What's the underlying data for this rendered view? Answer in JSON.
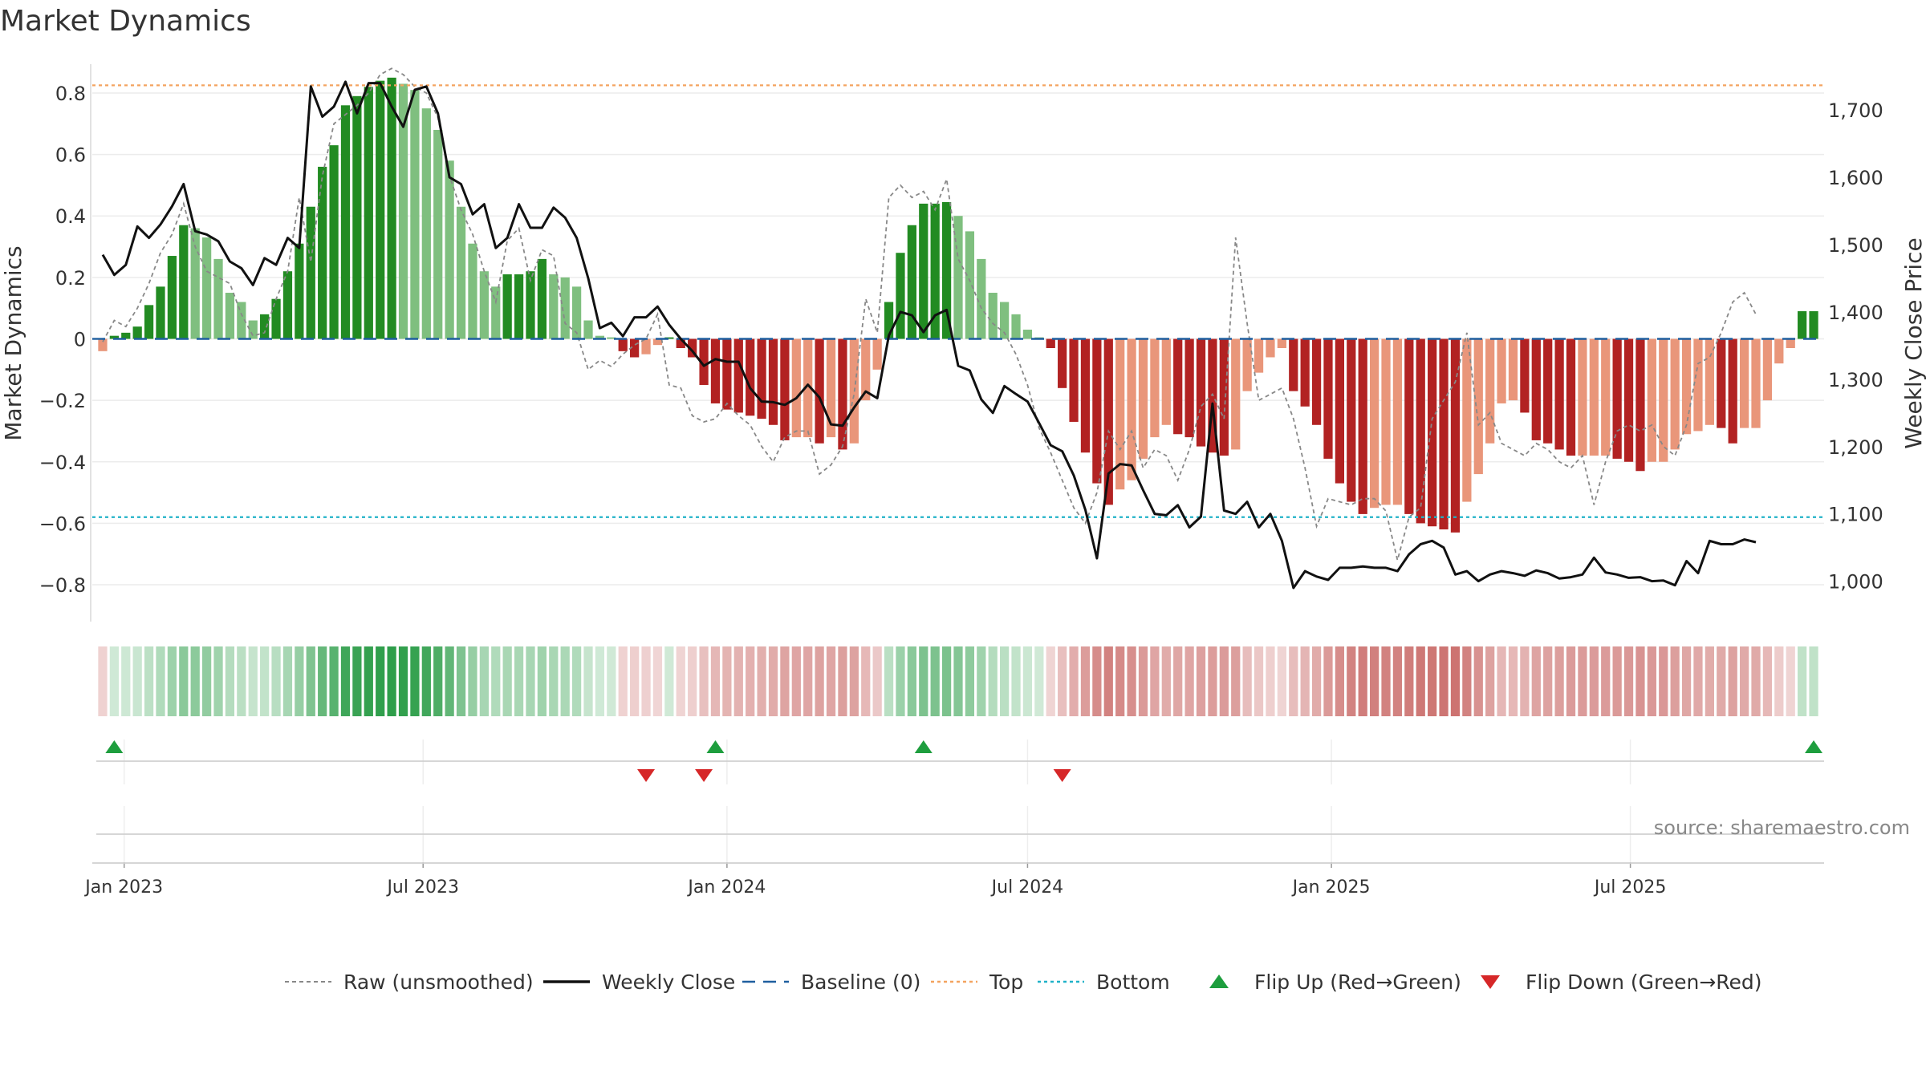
{
  "chart_data": {
    "type": "bar",
    "title": "Market Dynamics",
    "ylabel": "Market Dynamics",
    "y2label": "Weekly Close Price",
    "ylim": [
      -0.92,
      0.92
    ],
    "y2lim": [
      940,
      1780
    ],
    "yticks": [
      "0.8",
      "0.6",
      "0.4",
      "0.2",
      "0",
      "−0.2",
      "−0.4",
      "−0.6",
      "−0.8"
    ],
    "yticks_values": [
      0.8,
      0.6,
      0.4,
      0.2,
      0,
      -0.2,
      -0.4,
      -0.6,
      -0.8
    ],
    "y2ticks": [
      "1,700",
      "1,600",
      "1,500",
      "1,400",
      "1,300",
      "1,200",
      "1,100",
      "1,000"
    ],
    "y2ticks_values": [
      1700,
      1600,
      1500,
      1400,
      1300,
      1200,
      1100,
      1000
    ],
    "xticks": [
      "Jan 2023",
      "Jul 2023",
      "Jan 2024",
      "Jul 2024",
      "Jan 2025",
      "Jul 2025"
    ],
    "xticks_dates": [
      "2023-01-01",
      "2023-07-01",
      "2024-01-01",
      "2024-07-01",
      "2025-01-01",
      "2025-07-01"
    ],
    "start_date": "2022-12-19",
    "top_level": 0.825,
    "bottom_level": -0.58,
    "grid": true,
    "legend_position": "bottom",
    "source": "source: sharemaestro.com",
    "legend": [
      "Raw (unsmoothed)",
      "Weekly Close",
      "Baseline (0)",
      "Top",
      "Bottom",
      "Flip Up (Red→Green)",
      "Flip Down (Green→Red)"
    ],
    "colors": {
      "strong_up": "#228b22",
      "weak_up": "#7fbf7f",
      "strong_down": "#b22222",
      "weak_down": "#e9967a",
      "close": "#111111",
      "raw": "#888888",
      "baseline": "#1f5f9f",
      "top": "#f4a460",
      "bottom": "#20b2c8",
      "flip_up": "#1e9e3e",
      "flip_down": "#d62728"
    },
    "series": [
      {
        "name": "Market Dynamics",
        "values": [
          -0.04,
          0.01,
          0.02,
          0.04,
          0.11,
          0.17,
          0.27,
          0.37,
          0.36,
          0.33,
          0.26,
          0.15,
          0.12,
          0.06,
          0.08,
          0.13,
          0.22,
          0.31,
          0.43,
          0.56,
          0.63,
          0.76,
          0.79,
          0.82,
          0.84,
          0.85,
          0.83,
          0.81,
          0.75,
          0.68,
          0.58,
          0.43,
          0.31,
          0.22,
          0.17,
          0.21,
          0.21,
          0.22,
          0.26,
          0.21,
          0.2,
          0.17,
          0.06,
          0.01,
          0.005,
          -0.04,
          -0.06,
          -0.05,
          -0.02,
          0.005,
          -0.03,
          -0.06,
          -0.15,
          -0.21,
          -0.23,
          -0.24,
          -0.25,
          -0.26,
          -0.28,
          -0.33,
          -0.32,
          -0.32,
          -0.34,
          -0.32,
          -0.36,
          -0.34,
          -0.2,
          -0.1,
          0.12,
          0.28,
          0.37,
          0.44,
          0.44,
          0.445,
          0.4,
          0.35,
          0.26,
          0.15,
          0.12,
          0.08,
          0.03,
          0.005,
          -0.03,
          -0.16,
          -0.27,
          -0.37,
          -0.47,
          -0.54,
          -0.49,
          -0.46,
          -0.39,
          -0.32,
          -0.28,
          -0.31,
          -0.32,
          -0.35,
          -0.37,
          -0.38,
          -0.36,
          -0.17,
          -0.11,
          -0.06,
          -0.03,
          -0.17,
          -0.22,
          -0.28,
          -0.39,
          -0.47,
          -0.53,
          -0.57,
          -0.55,
          -0.54,
          -0.54,
          -0.57,
          -0.6,
          -0.61,
          -0.62,
          -0.63,
          -0.53,
          -0.44,
          -0.34,
          -0.21,
          -0.2,
          -0.24,
          -0.33,
          -0.34,
          -0.36,
          -0.38,
          -0.38,
          -0.38,
          -0.38,
          -0.39,
          -0.4,
          -0.43,
          -0.4,
          -0.4,
          -0.36,
          -0.31,
          -0.3,
          -0.28,
          -0.29,
          -0.34,
          -0.29,
          -0.29,
          -0.2,
          -0.08,
          -0.03,
          0.09,
          0.09
        ]
      },
      {
        "name": "Raw (unsmoothed)",
        "values": [
          -0.01,
          0.06,
          0.04,
          0.1,
          0.18,
          0.28,
          0.34,
          0.44,
          0.3,
          0.22,
          0.2,
          0.18,
          0.08,
          0.01,
          0.02,
          0.13,
          0.22,
          0.46,
          0.25,
          0.53,
          0.7,
          0.73,
          0.76,
          0.8,
          0.86,
          0.88,
          0.86,
          0.82,
          0.8,
          0.72,
          0.53,
          0.42,
          0.34,
          0.22,
          0.12,
          0.32,
          0.36,
          0.19,
          0.29,
          0.27,
          0.05,
          0.02,
          -0.1,
          -0.07,
          -0.09,
          -0.05,
          -0.02,
          0.0,
          0.08,
          -0.15,
          -0.16,
          -0.25,
          -0.27,
          -0.26,
          -0.21,
          -0.25,
          -0.28,
          -0.35,
          -0.4,
          -0.32,
          -0.3,
          -0.3,
          -0.44,
          -0.41,
          -0.35,
          -0.18,
          0.13,
          0.02,
          0.46,
          0.5,
          0.46,
          0.48,
          0.42,
          0.52,
          0.26,
          0.19,
          0.1,
          0.05,
          0.02,
          -0.05,
          -0.15,
          -0.29,
          -0.37,
          -0.46,
          -0.55,
          -0.6,
          -0.5,
          -0.3,
          -0.36,
          -0.3,
          -0.42,
          -0.36,
          -0.38,
          -0.46,
          -0.36,
          -0.22,
          -0.18,
          -0.26,
          0.33,
          0.05,
          -0.2,
          -0.18,
          -0.16,
          -0.26,
          -0.42,
          -0.61,
          -0.52,
          -0.53,
          -0.54,
          -0.52,
          -0.52,
          -0.56,
          -0.72,
          -0.58,
          -0.55,
          -0.26,
          -0.2,
          -0.14,
          0.02,
          -0.28,
          -0.24,
          -0.34,
          -0.36,
          -0.38,
          -0.34,
          -0.36,
          -0.4,
          -0.42,
          -0.38,
          -0.54,
          -0.4,
          -0.3,
          -0.28,
          -0.3,
          -0.28,
          -0.35,
          -0.38,
          -0.28,
          -0.08,
          -0.06,
          0.02,
          0.12,
          0.15,
          0.08
        ]
      },
      {
        "name": "Weekly Close",
        "values": [
          1485,
          1455,
          1470,
          1527,
          1510,
          1530,
          1557,
          1590,
          1520,
          1515,
          1505,
          1475,
          1465,
          1440,
          1480,
          1470,
          1510,
          1495,
          1735,
          1690,
          1705,
          1742,
          1695,
          1740,
          1740,
          1705,
          1675,
          1730,
          1735,
          1695,
          1600,
          1590,
          1545,
          1560,
          1495,
          1510,
          1560,
          1525,
          1525,
          1555,
          1540,
          1510,
          1450,
          1376,
          1384,
          1364,
          1392,
          1392,
          1408,
          1381,
          1360,
          1342,
          1320,
          1330,
          1326,
          1326,
          1287,
          1267,
          1266,
          1262,
          1272,
          1292,
          1273,
          1233,
          1231,
          1258,
          1282,
          1272,
          1365,
          1400,
          1395,
          1370,
          1395,
          1403,
          1320,
          1313,
          1270,
          1250,
          1290,
          1278,
          1267,
          1235,
          1202,
          1193,
          1157,
          1106,
          1034,
          1160,
          1174,
          1172,
          1135,
          1100,
          1098,
          1113,
          1080,
          1096,
          1264,
          1105,
          1100,
          1118,
          1080,
          1100,
          1060,
          990,
          1015,
          1007,
          1002,
          1020,
          1020,
          1022,
          1020,
          1020,
          1015,
          1040,
          1055,
          1060,
          1050,
          1010,
          1015,
          1000,
          1010,
          1015,
          1012,
          1008,
          1016,
          1012,
          1004,
          1006,
          1010,
          1035,
          1013,
          1010,
          1005,
          1006,
          1000,
          1001,
          994,
          1030,
          1012,
          1060,
          1055,
          1055,
          1062,
          1058
        ]
      }
    ],
    "flip_up_weeks": [
      1,
      53,
      71,
      148
    ],
    "flip_down_weeks": [
      47,
      52,
      83
    ]
  }
}
